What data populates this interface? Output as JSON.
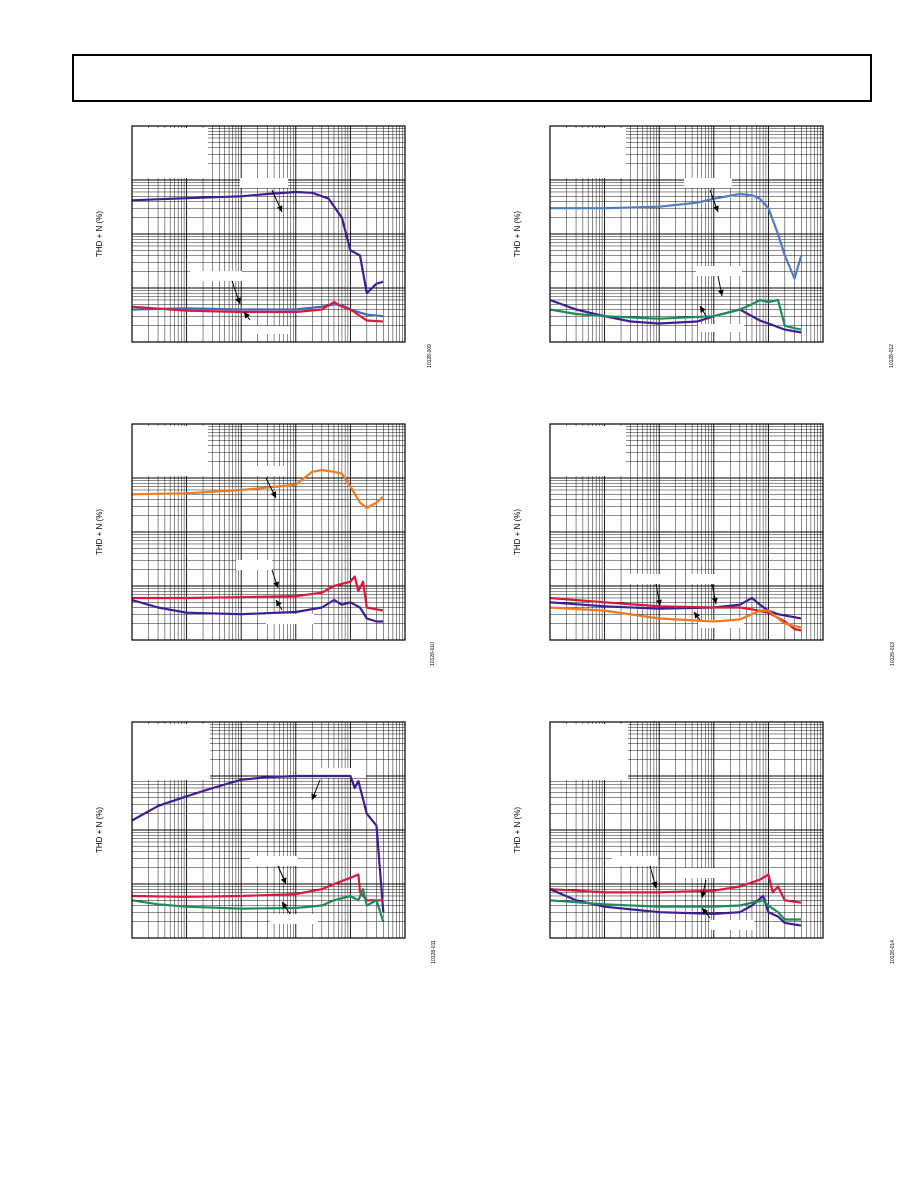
{
  "page": {
    "header_text": ""
  },
  "chart_data": [
    {
      "type": "line",
      "panel": "top-left",
      "ylabel": "THD + N (%)",
      "figure_id": "10128-009",
      "xscale": "log",
      "yscale": "log",
      "xlim": [
        1,
        100000
      ],
      "ylim": [
        0.001,
        10
      ],
      "grid": true,
      "series": [
        {
          "color": "#3b1f93",
          "points": [
            [
              1,
              0.42
            ],
            [
              10,
              0.46
            ],
            [
              100,
              0.5
            ],
            [
              300,
              0.55
            ],
            [
              1000,
              0.6
            ],
            [
              2000,
              0.58
            ],
            [
              4000,
              0.45
            ],
            [
              7000,
              0.2
            ],
            [
              10000,
              0.05
            ],
            [
              15000,
              0.04
            ],
            [
              20000,
              0.008
            ],
            [
              30000,
              0.012
            ],
            [
              40000,
              0.013
            ]
          ]
        },
        {
          "color": "#3f6ab4",
          "points": [
            [
              1,
              0.004
            ],
            [
              10,
              0.0042
            ],
            [
              100,
              0.004
            ],
            [
              1000,
              0.004
            ],
            [
              3000,
              0.0045
            ],
            [
              5000,
              0.005
            ],
            [
              7000,
              0.0048
            ],
            [
              10000,
              0.004
            ],
            [
              20000,
              0.0032
            ],
            [
              40000,
              0.003
            ]
          ]
        },
        {
          "color": "#d8183c",
          "points": [
            [
              1,
              0.0045
            ],
            [
              10,
              0.0038
            ],
            [
              100,
              0.0036
            ],
            [
              1000,
              0.0036
            ],
            [
              3000,
              0.004
            ],
            [
              5000,
              0.0055
            ],
            [
              7000,
              0.0045
            ],
            [
              10000,
              0.004
            ],
            [
              20000,
              0.0025
            ],
            [
              40000,
              0.0024
            ]
          ]
        }
      ]
    },
    {
      "type": "line",
      "panel": "top-right",
      "ylabel": "THD + N (%)",
      "figure_id": "10128-012",
      "xscale": "log",
      "yscale": "log",
      "xlim": [
        1,
        100000
      ],
      "ylim": [
        0.001,
        10
      ],
      "grid": true,
      "series": [
        {
          "color": "#4f7bc0",
          "points": [
            [
              1,
              0.3
            ],
            [
              10,
              0.3
            ],
            [
              100,
              0.32
            ],
            [
              500,
              0.38
            ],
            [
              1000,
              0.45
            ],
            [
              3000,
              0.55
            ],
            [
              5000,
              0.52
            ],
            [
              7000,
              0.45
            ],
            [
              10000,
              0.3
            ],
            [
              15000,
              0.1
            ],
            [
              20000,
              0.04
            ],
            [
              30000,
              0.015
            ],
            [
              40000,
              0.04
            ]
          ]
        },
        {
          "color": "#3b1f93",
          "points": [
            [
              1,
              0.006
            ],
            [
              3,
              0.004
            ],
            [
              10,
              0.003
            ],
            [
              30,
              0.0024
            ],
            [
              100,
              0.0022
            ],
            [
              500,
              0.0024
            ],
            [
              1000,
              0.003
            ],
            [
              3000,
              0.004
            ],
            [
              5000,
              0.003
            ],
            [
              7000,
              0.0025
            ],
            [
              10000,
              0.0022
            ],
            [
              20000,
              0.0017
            ],
            [
              40000,
              0.0015
            ]
          ]
        },
        {
          "color": "#1e8b5a",
          "points": [
            [
              1,
              0.004
            ],
            [
              3,
              0.0033
            ],
            [
              10,
              0.003
            ],
            [
              100,
              0.0027
            ],
            [
              1000,
              0.003
            ],
            [
              3000,
              0.004
            ],
            [
              5000,
              0.005
            ],
            [
              7000,
              0.006
            ],
            [
              10000,
              0.0055
            ],
            [
              15000,
              0.006
            ],
            [
              20000,
              0.002
            ],
            [
              30000,
              0.0018
            ],
            [
              40000,
              0.0017
            ]
          ]
        }
      ]
    },
    {
      "type": "line",
      "panel": "middle-left",
      "ylabel": "THD + N (%)",
      "figure_id": "10128-010",
      "xscale": "log",
      "yscale": "log",
      "xlim": [
        1,
        100000
      ],
      "ylim": [
        0.001,
        10
      ],
      "grid": true,
      "series": [
        {
          "color": "#f07a1e",
          "points": [
            [
              1,
              0.5
            ],
            [
              10,
              0.52
            ],
            [
              100,
              0.6
            ],
            [
              500,
              0.7
            ],
            [
              1000,
              0.75
            ],
            [
              2000,
              1.3
            ],
            [
              3000,
              1.4
            ],
            [
              5000,
              1.3
            ],
            [
              7000,
              1.2
            ],
            [
              10000,
              0.7
            ],
            [
              15000,
              0.35
            ],
            [
              20000,
              0.28
            ],
            [
              30000,
              0.35
            ],
            [
              40000,
              0.45
            ]
          ]
        },
        {
          "color": "#d8183c",
          "points": [
            [
              1,
              0.006
            ],
            [
              10,
              0.006
            ],
            [
              100,
              0.0062
            ],
            [
              1000,
              0.0065
            ],
            [
              3000,
              0.0075
            ],
            [
              5000,
              0.01
            ],
            [
              10000,
              0.012
            ],
            [
              12000,
              0.015
            ],
            [
              14000,
              0.008
            ],
            [
              17000,
              0.012
            ],
            [
              20000,
              0.004
            ],
            [
              40000,
              0.0035
            ]
          ]
        },
        {
          "color": "#3b1f93",
          "points": [
            [
              1,
              0.0055
            ],
            [
              3,
              0.004
            ],
            [
              10,
              0.0032
            ],
            [
              100,
              0.003
            ],
            [
              1000,
              0.0033
            ],
            [
              3000,
              0.004
            ],
            [
              5000,
              0.0055
            ],
            [
              7000,
              0.0045
            ],
            [
              10000,
              0.005
            ],
            [
              15000,
              0.004
            ],
            [
              20000,
              0.0025
            ],
            [
              30000,
              0.0022
            ],
            [
              40000,
              0.0022
            ]
          ]
        }
      ]
    },
    {
      "type": "line",
      "panel": "middle-right",
      "ylabel": "THD + N (%)",
      "figure_id": "10128-013",
      "xscale": "log",
      "yscale": "log",
      "xlim": [
        1,
        100000
      ],
      "ylim": [
        0.001,
        10
      ],
      "grid": true,
      "series": [
        {
          "color": "#3b1f93",
          "points": [
            [
              1,
              0.005
            ],
            [
              10,
              0.0042
            ],
            [
              100,
              0.0038
            ],
            [
              1000,
              0.004
            ],
            [
              3000,
              0.0045
            ],
            [
              5000,
              0.006
            ],
            [
              7000,
              0.0045
            ],
            [
              10000,
              0.0035
            ],
            [
              15000,
              0.003
            ],
            [
              40000,
              0.0025
            ]
          ]
        },
        {
          "color": "#d8183c",
          "points": [
            [
              1,
              0.006
            ],
            [
              10,
              0.005
            ],
            [
              100,
              0.0042
            ],
            [
              1000,
              0.004
            ],
            [
              3000,
              0.004
            ],
            [
              5000,
              0.0037
            ],
            [
              10000,
              0.0032
            ],
            [
              20000,
              0.0022
            ],
            [
              30000,
              0.0016
            ],
            [
              40000,
              0.0015
            ]
          ]
        },
        {
          "color": "#f07a1e",
          "points": [
            [
              1,
              0.004
            ],
            [
              10,
              0.0035
            ],
            [
              100,
              0.0025
            ],
            [
              1000,
              0.0022
            ],
            [
              3000,
              0.0024
            ],
            [
              5000,
              0.003
            ],
            [
              7000,
              0.0035
            ],
            [
              10000,
              0.0035
            ],
            [
              20000,
              0.002
            ],
            [
              40000,
              0.0017
            ]
          ]
        }
      ]
    },
    {
      "type": "line",
      "panel": "bottom-left",
      "ylabel": "THD + N (%)",
      "figure_id": "10128-011",
      "xscale": "log",
      "yscale": "log",
      "xlim": [
        1,
        100000
      ],
      "ylim": [
        0.001,
        10
      ],
      "grid": true,
      "series": [
        {
          "color": "#3b1f93",
          "points": [
            [
              1,
              0.15
            ],
            [
              3,
              0.28
            ],
            [
              10,
              0.42
            ],
            [
              30,
              0.6
            ],
            [
              100,
              0.85
            ],
            [
              300,
              0.95
            ],
            [
              1000,
              1.0
            ],
            [
              3000,
              1.0
            ],
            [
              10000,
              1.0
            ],
            [
              12000,
              0.6
            ],
            [
              14000,
              0.8
            ],
            [
              20000,
              0.2
            ],
            [
              30000,
              0.12
            ],
            [
              40000,
              0.003
            ]
          ]
        },
        {
          "color": "#d8183c",
          "points": [
            [
              1,
              0.006
            ],
            [
              10,
              0.0058
            ],
            [
              100,
              0.006
            ],
            [
              1000,
              0.0065
            ],
            [
              3000,
              0.008
            ],
            [
              5000,
              0.01
            ],
            [
              10000,
              0.013
            ],
            [
              14000,
              0.015
            ],
            [
              15000,
              0.007
            ],
            [
              20000,
              0.005
            ],
            [
              40000,
              0.005
            ]
          ]
        },
        {
          "color": "#1e8b5a",
          "points": [
            [
              1,
              0.005
            ],
            [
              3,
              0.0042
            ],
            [
              10,
              0.0038
            ],
            [
              100,
              0.0035
            ],
            [
              1000,
              0.0036
            ],
            [
              3000,
              0.004
            ],
            [
              5000,
              0.005
            ],
            [
              10000,
              0.006
            ],
            [
              14000,
              0.005
            ],
            [
              17000,
              0.008
            ],
            [
              20000,
              0.004
            ],
            [
              30000,
              0.005
            ],
            [
              40000,
              0.002
            ]
          ]
        }
      ]
    },
    {
      "type": "line",
      "panel": "bottom-right",
      "ylabel": "THD + N (%)",
      "figure_id": "10128-014",
      "xscale": "log",
      "yscale": "log",
      "xlim": [
        1,
        100000
      ],
      "ylim": [
        0.001,
        10
      ],
      "grid": true,
      "series": [
        {
          "color": "#d8183c",
          "points": [
            [
              1,
              0.008
            ],
            [
              3,
              0.0075
            ],
            [
              10,
              0.007
            ],
            [
              100,
              0.007
            ],
            [
              1000,
              0.0075
            ],
            [
              3000,
              0.009
            ],
            [
              7000,
              0.012
            ],
            [
              10000,
              0.015
            ],
            [
              12000,
              0.007
            ],
            [
              15000,
              0.009
            ],
            [
              20000,
              0.005
            ],
            [
              40000,
              0.0045
            ]
          ]
        },
        {
          "color": "#3b1f93",
          "points": [
            [
              1,
              0.008
            ],
            [
              3,
              0.005
            ],
            [
              10,
              0.0038
            ],
            [
              100,
              0.003
            ],
            [
              1000,
              0.0028
            ],
            [
              3000,
              0.003
            ],
            [
              5000,
              0.004
            ],
            [
              8000,
              0.006
            ],
            [
              10000,
              0.003
            ],
            [
              15000,
              0.0025
            ],
            [
              20000,
              0.0019
            ],
            [
              40000,
              0.0017
            ]
          ]
        },
        {
          "color": "#1e8b5a",
          "points": [
            [
              1,
              0.005
            ],
            [
              10,
              0.0042
            ],
            [
              100,
              0.0038
            ],
            [
              1000,
              0.0038
            ],
            [
              3000,
              0.004
            ],
            [
              5000,
              0.0045
            ],
            [
              8000,
              0.005
            ],
            [
              10000,
              0.004
            ],
            [
              15000,
              0.003
            ],
            [
              20000,
              0.0022
            ],
            [
              40000,
              0.0022
            ]
          ]
        }
      ]
    }
  ]
}
